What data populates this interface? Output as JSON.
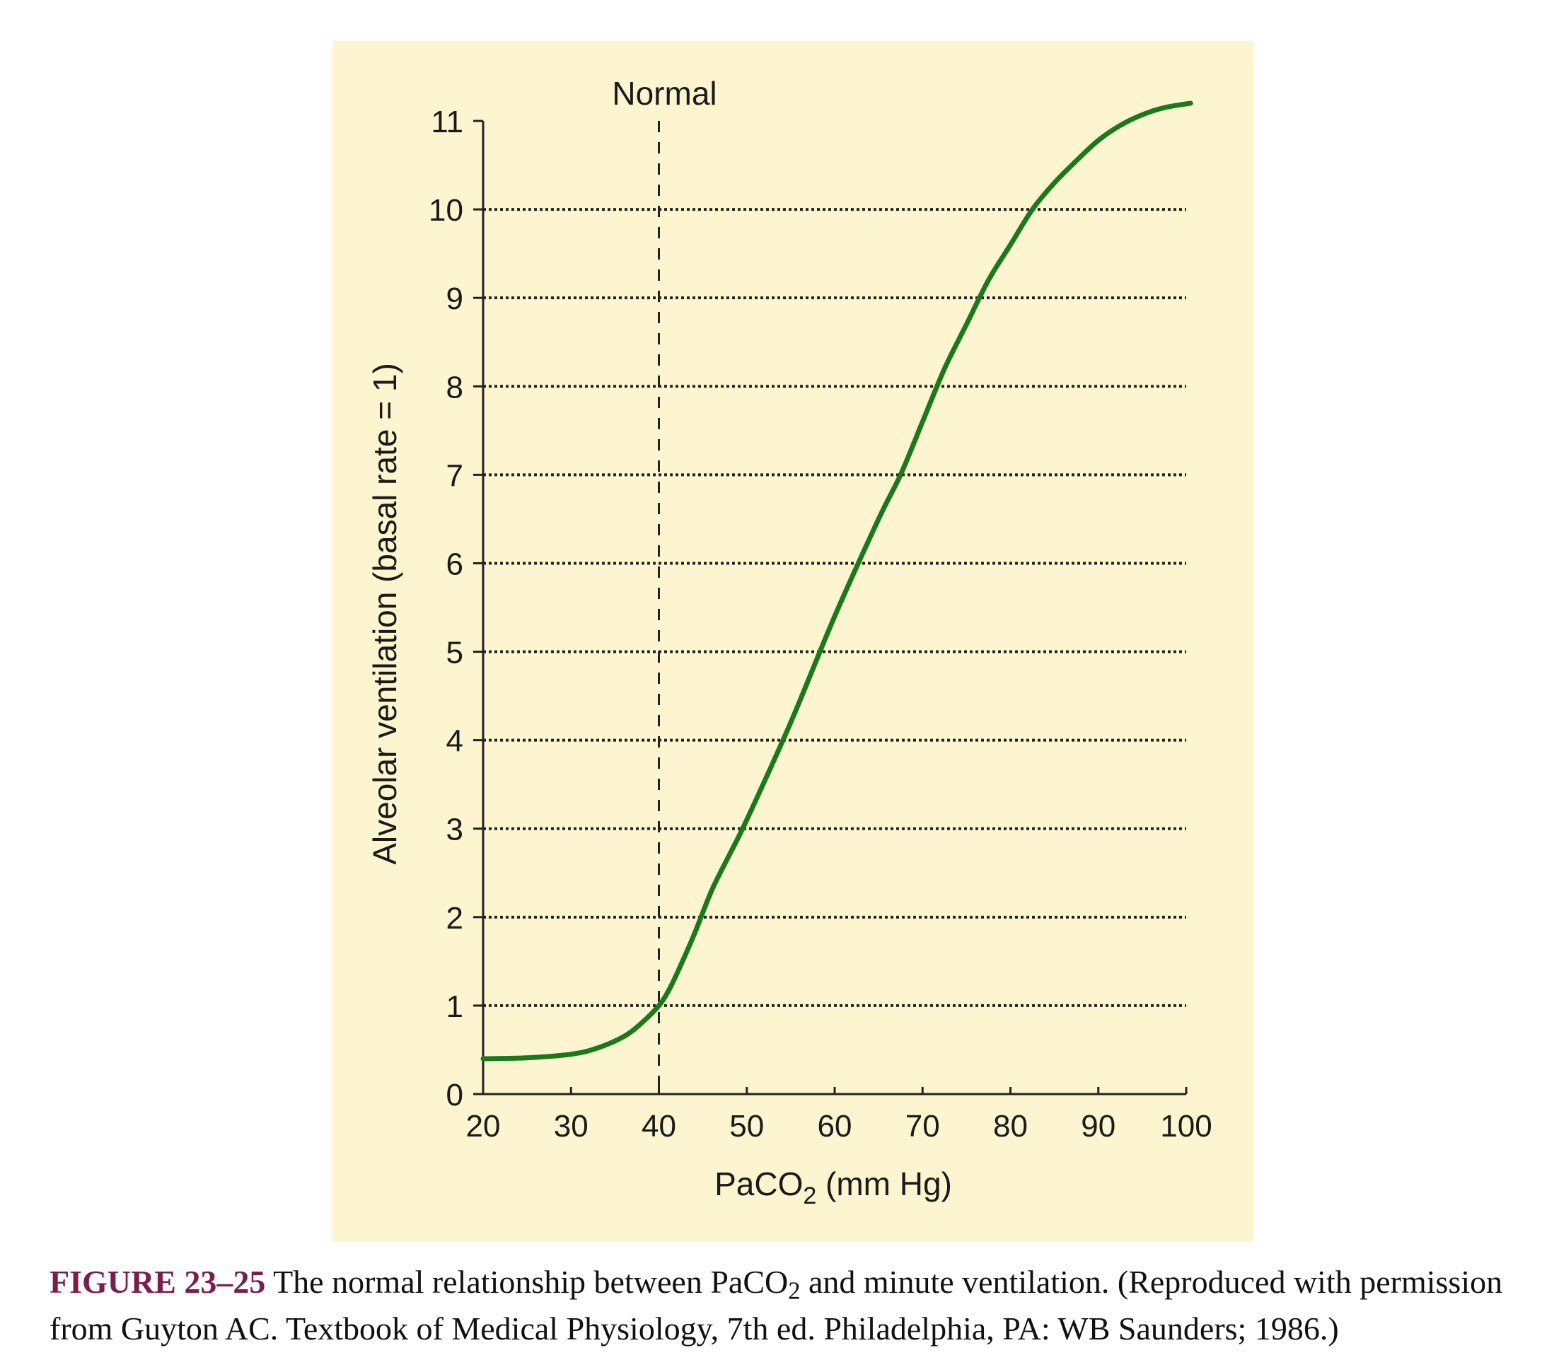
{
  "chart_data": {
    "type": "line",
    "title": "",
    "xlabel": "PaCO",
    "xlabel_subscript": "2",
    "xlabel_suffix": " (mm Hg)",
    "ylabel": "Alveolar ventilation (basal rate = 1)",
    "xlim": [
      20,
      100
    ],
    "ylim": [
      0,
      11
    ],
    "x_ticks": [
      20,
      30,
      40,
      50,
      60,
      70,
      80,
      90,
      100
    ],
    "y_ticks": [
      0,
      1,
      2,
      3,
      4,
      5,
      6,
      7,
      8,
      9,
      10,
      11
    ],
    "grid": "horizontal dotted",
    "reference_line": {
      "x": 40,
      "label": "Normal",
      "style": "dashed"
    },
    "series": [
      {
        "color": "#1a7a1a",
        "x": [
          20,
          25,
          30,
          33,
          36,
          38,
          40,
          41,
          42,
          44,
          46,
          48,
          50,
          55,
          60,
          65,
          67.5,
          70,
          72.5,
          75,
          77.5,
          80,
          82.5,
          85,
          87.5,
          90,
          92.5,
          95,
          97.5,
          100.5
        ],
        "y": [
          0.4,
          0.41,
          0.45,
          0.52,
          0.65,
          0.8,
          1.0,
          1.15,
          1.35,
          1.8,
          2.3,
          2.7,
          3.1,
          4.2,
          5.4,
          6.5,
          7.0,
          7.6,
          8.2,
          8.7,
          9.2,
          9.6,
          10.0,
          10.3,
          10.55,
          10.78,
          10.95,
          11.07,
          11.15,
          11.2
        ]
      }
    ],
    "background": "#fdf5d0"
  },
  "caption": {
    "label": "FIGURE 23–25",
    "text_before_sub": " The normal relationship between PaCO",
    "subscript": "2",
    "text_after_sub": " and minute ventilation. (Reproduced with permission from Guyton AC. Textbook of Medical Physiology, 7th ed. Philadelphia, PA: WB Saunders; 1986.)"
  }
}
